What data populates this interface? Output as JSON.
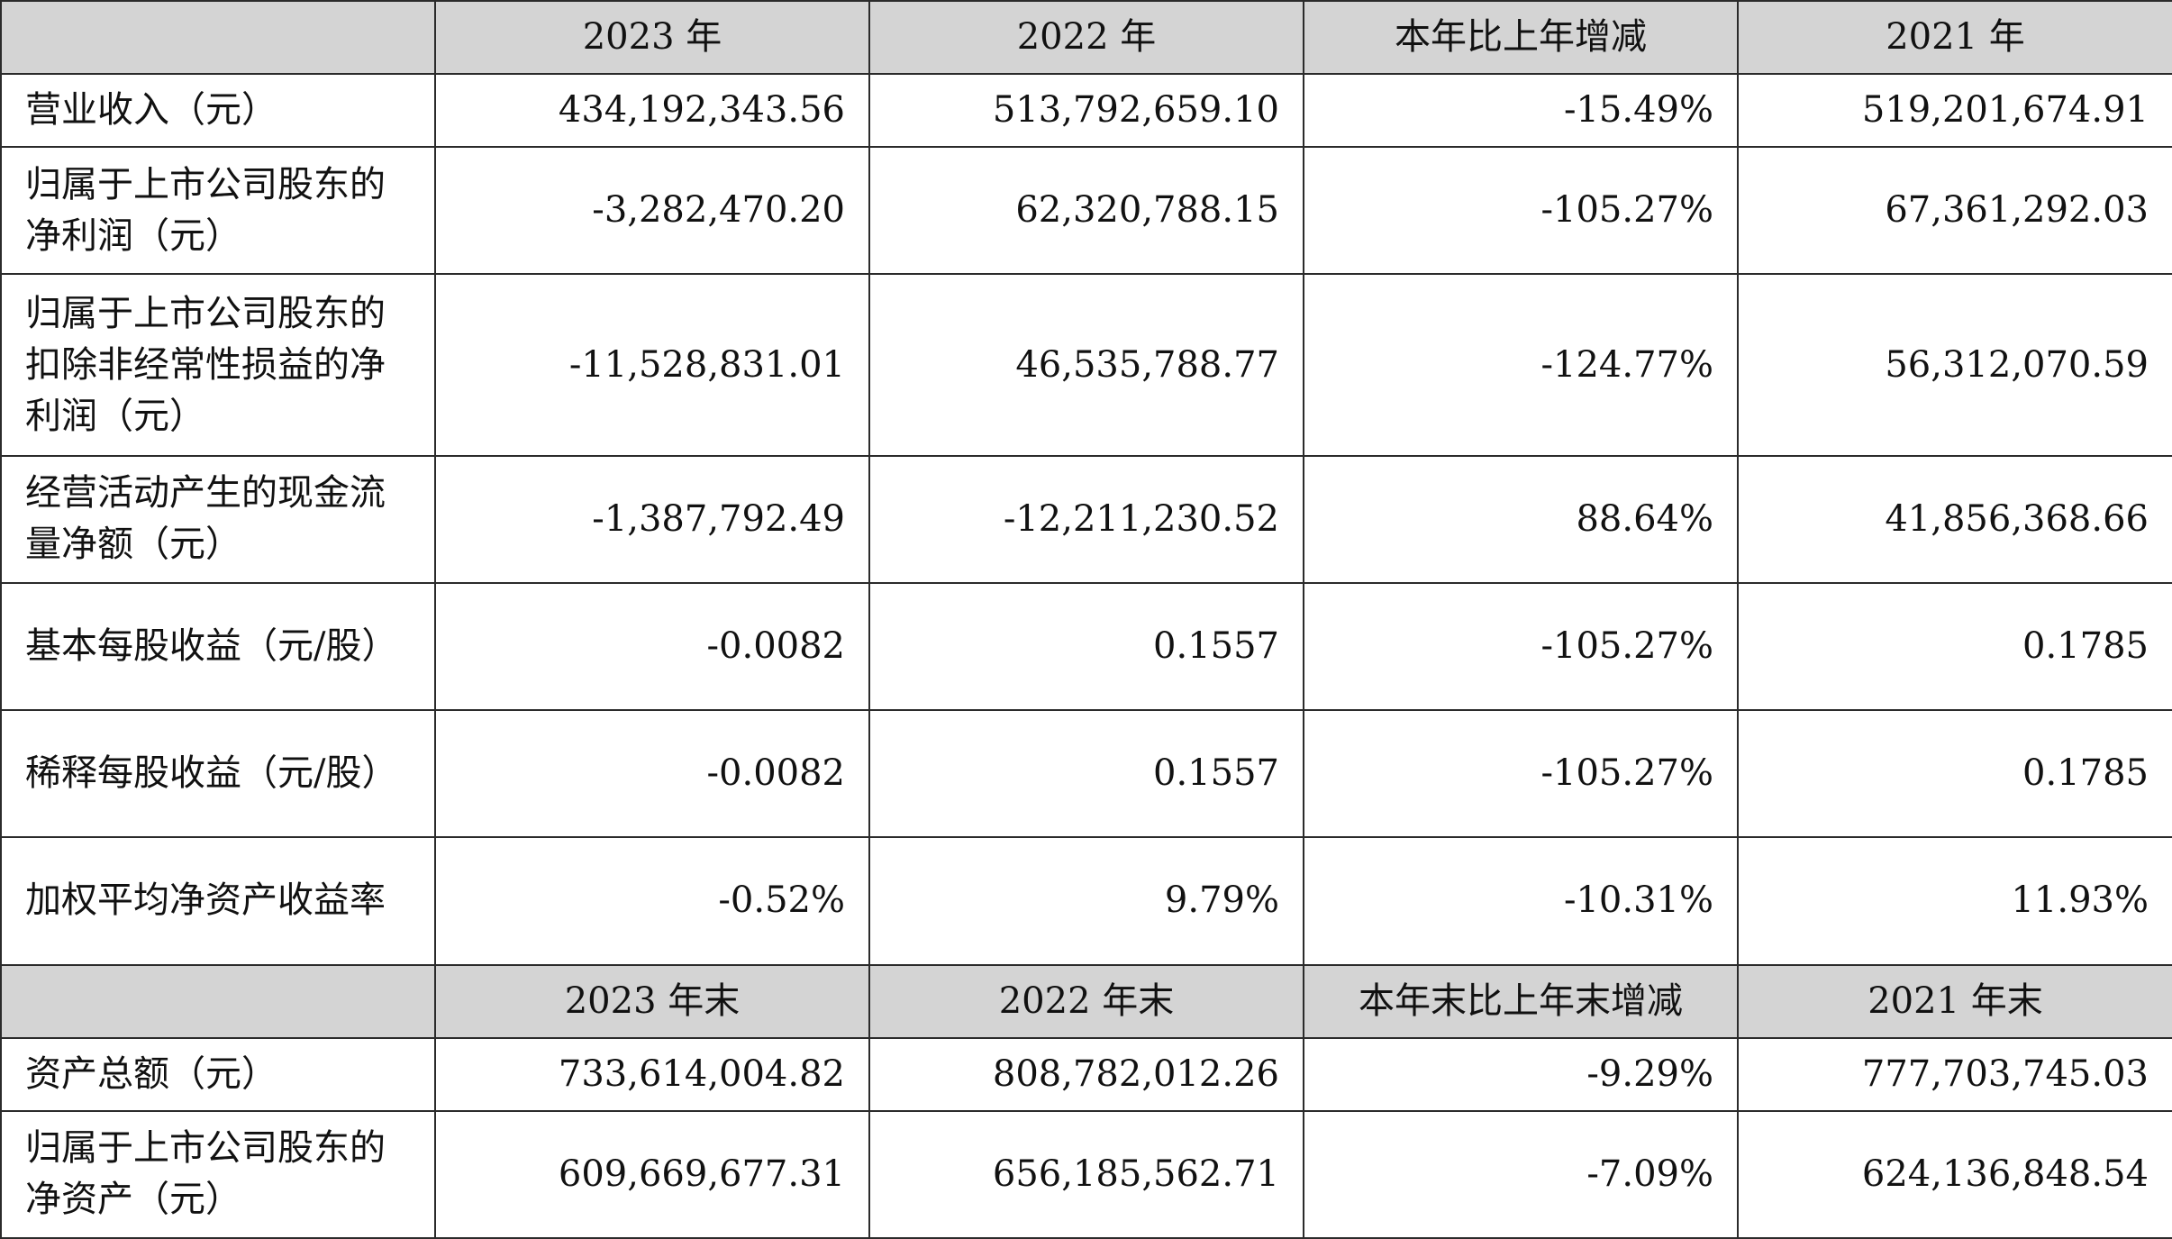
{
  "header1": [
    "",
    "2023 年",
    "2022 年",
    "本年比上年增减",
    "2021 年"
  ],
  "rows1": [
    {
      "label": "营业收入（元）",
      "values": [
        "434,192,343.56",
        "513,792,659.10",
        "-15.49%",
        "519,201,674.91"
      ]
    },
    {
      "label": "归属于上市公司股东的净利润（元）",
      "values": [
        "-3,282,470.20",
        "62,320,788.15",
        "-105.27%",
        "67,361,292.03"
      ]
    },
    {
      "label": "归属于上市公司股东的扣除非经常性损益的净利润（元）",
      "values": [
        "-11,528,831.01",
        "46,535,788.77",
        "-124.77%",
        "56,312,070.59"
      ]
    },
    {
      "label": "经营活动产生的现金流量净额（元）",
      "values": [
        "-1,387,792.49",
        "-12,211,230.52",
        "88.64%",
        "41,856,368.66"
      ]
    },
    {
      "label": "基本每股收益（元/股）",
      "values": [
        "-0.0082",
        "0.1557",
        "-105.27%",
        "0.1785"
      ]
    },
    {
      "label": "稀释每股收益（元/股）",
      "values": [
        "-0.0082",
        "0.1557",
        "-105.27%",
        "0.1785"
      ]
    },
    {
      "label": "加权平均净资产收益率",
      "values": [
        "-0.52%",
        "9.79%",
        "-10.31%",
        "11.93%"
      ]
    }
  ],
  "header2": [
    "",
    "2023 年末",
    "2022 年末",
    "本年末比上年末增减",
    "2021 年末"
  ],
  "rows2": [
    {
      "label": "资产总额（元）",
      "values": [
        "733,614,004.82",
        "808,782,012.26",
        "-9.29%",
        "777,703,745.03"
      ]
    },
    {
      "label": "归属于上市公司股东的净资产（元）",
      "values": [
        "609,669,677.31",
        "656,185,562.71",
        "-7.09%",
        "624,136,848.54"
      ]
    }
  ]
}
